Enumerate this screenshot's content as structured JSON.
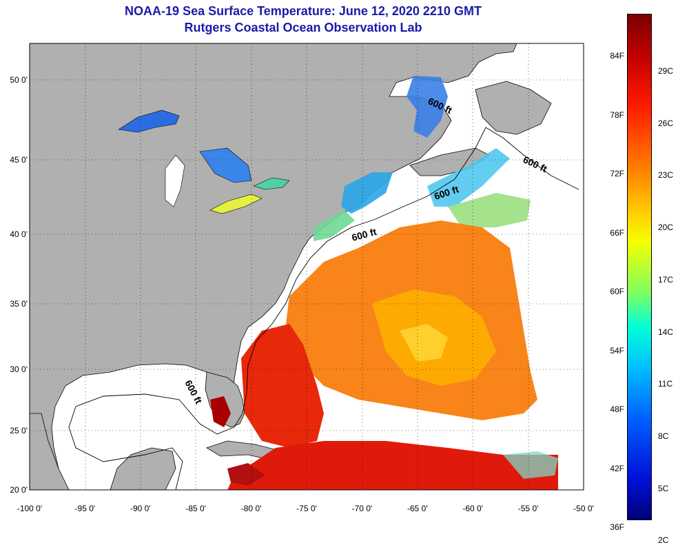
{
  "header": {
    "title": "NOAA-19 Sea Surface Temperature:  June 12, 2020 2210 GMT",
    "subtitle": "Rutgers Coastal Ocean Observation Lab"
  },
  "map": {
    "lon_ticks": [
      "-100 0'",
      "-95 0'",
      "-90 0'",
      "-85 0'",
      "-80 0'",
      "-75 0'",
      "-70 0'",
      "-65 0'",
      "-60 0'",
      "-55 0'",
      "-50 0'"
    ],
    "lat_ticks": [
      "50 0'",
      "45 0'",
      "40 0'",
      "35 0'",
      "30 0'",
      "25 0'",
      "20 0'"
    ],
    "isobath_label": "600 ft",
    "colors": {
      "land": "#b0b0b0",
      "water_no_data": "#ffffff",
      "title": "#1a1aa8"
    }
  },
  "colorbar": {
    "fahrenheit": [
      "84F",
      "78F",
      "72F",
      "66F",
      "60F",
      "54F",
      "48F",
      "42F",
      "36F"
    ],
    "celsius": [
      "29C",
      "26C",
      "23C",
      "20C",
      "17C",
      "14C",
      "11C",
      "8C",
      "5C",
      "2C"
    ]
  }
}
